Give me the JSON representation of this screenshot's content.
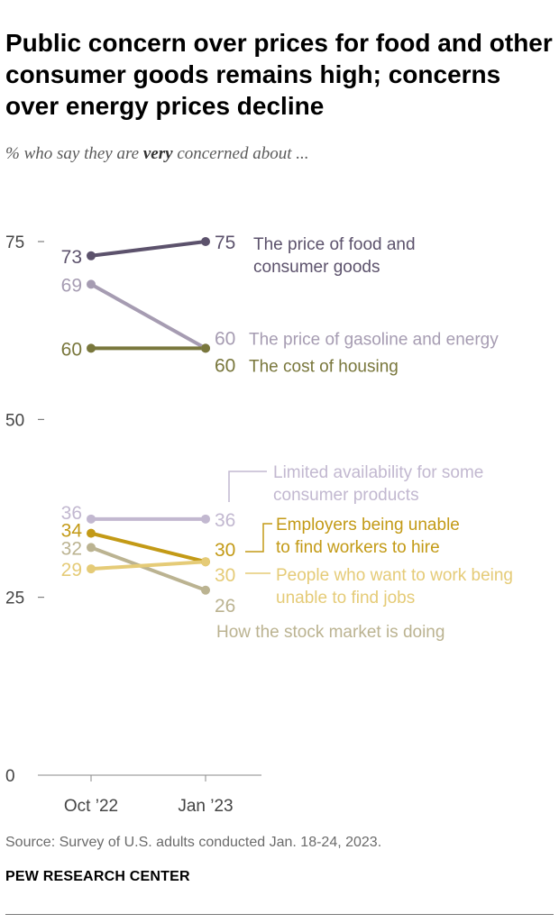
{
  "title": "Public concern over prices for food and other consumer goods remains high; concerns over energy prices decline",
  "subtitle_pre": "% who say they are ",
  "subtitle_emph": "very",
  "subtitle_post": " concerned about ...",
  "source": "Source: Survey of U.S. adults conducted Jan. 18-24, 2023.",
  "org": "PEW RESEARCH CENTER",
  "chart_data": {
    "type": "line",
    "categories": [
      "Oct ’22",
      "Jan ’23"
    ],
    "ylim": [
      0,
      75
    ],
    "yticks": [
      0,
      25,
      50,
      75
    ],
    "series": [
      {
        "name": "The price of food and consumer goods",
        "label_lines": [
          "The price of food and",
          "consumer goods"
        ],
        "values": [
          73,
          75
        ],
        "color": "#5c526c"
      },
      {
        "name": "The price of gasoline and energy",
        "label_lines": [
          "The price of gasoline and energy"
        ],
        "values": [
          69,
          60
        ],
        "color": "#a69cb2"
      },
      {
        "name": "The cost of housing",
        "label_lines": [
          "The cost of housing"
        ],
        "values": [
          60,
          60
        ],
        "color": "#79773c"
      },
      {
        "name": "Limited availability for some consumer products",
        "label_lines": [
          "Limited availability for some",
          "consumer products"
        ],
        "values": [
          36,
          36
        ],
        "color": "#c2b8d0"
      },
      {
        "name": "Employers being unable to find workers to hire",
        "label_lines": [
          "Employers being unable",
          "to find workers to hire"
        ],
        "values": [
          34,
          30
        ],
        "color": "#c39a16"
      },
      {
        "name": "How the stock market is doing",
        "label_lines": [
          "How the stock market is doing"
        ],
        "values": [
          32,
          26
        ],
        "color": "#bbb391"
      },
      {
        "name": "People who want to work being unable to find jobs",
        "label_lines": [
          "People who want to work being",
          "unable to find jobs"
        ],
        "values": [
          29,
          30
        ],
        "color": "#e5cb77"
      }
    ]
  }
}
